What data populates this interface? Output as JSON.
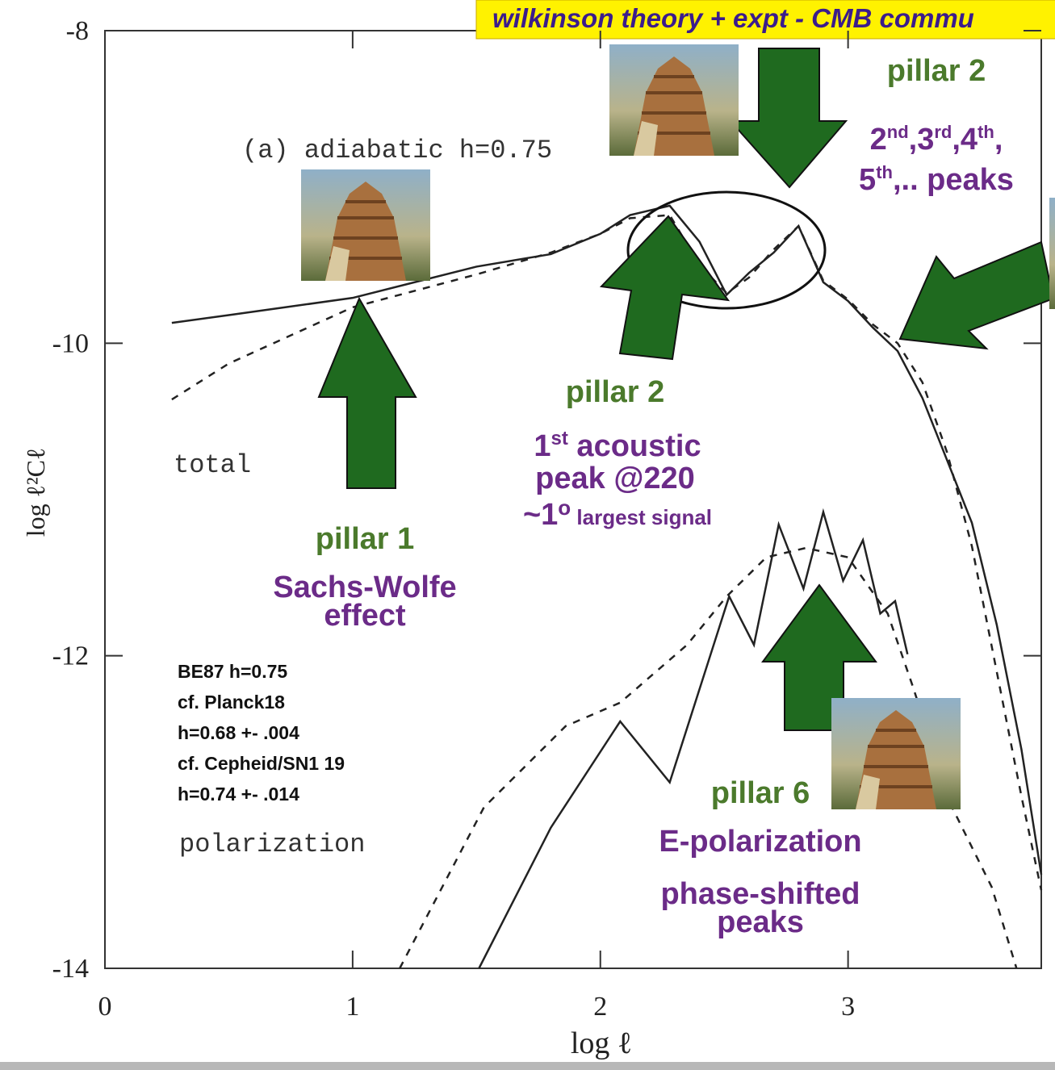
{
  "chart_data": {
    "type": "line",
    "title": "wilkinson theory + expt - CMB commu",
    "xlabel": "log ℓ",
    "ylabel": "log ℓ²Cℓ",
    "panel_label": "(a) adiabatic h=0.75",
    "curve_labels": [
      "total",
      "polarization"
    ],
    "xlim": [
      0,
      3.78
    ],
    "ylim": [
      -14,
      -8
    ],
    "xticks": [
      0,
      1,
      2,
      3
    ],
    "yticks": [
      -8,
      -10,
      -12,
      -14
    ],
    "series": [
      {
        "style": "solid",
        "color": "#222222",
        "x": [
          0.27,
          0.5,
          1.0,
          1.5,
          1.8,
          2.0,
          2.12,
          2.28,
          2.4,
          2.51,
          2.6,
          2.7,
          2.8,
          2.9,
          3.0,
          3.1,
          3.2,
          3.3,
          3.4,
          3.5,
          3.6,
          3.7,
          3.78
        ],
        "values": [
          -9.87,
          -9.82,
          -9.71,
          -9.51,
          -9.43,
          -9.3,
          -9.18,
          -9.12,
          -9.35,
          -9.69,
          -9.55,
          -9.42,
          -9.25,
          -9.61,
          -9.73,
          -9.9,
          -10.05,
          -10.35,
          -10.75,
          -11.15,
          -11.8,
          -12.6,
          -13.4
        ]
      },
      {
        "style": "dashed",
        "color": "#222222",
        "x": [
          0.27,
          0.5,
          1.0,
          1.5,
          1.8,
          2.0,
          2.12,
          2.28,
          2.4,
          2.51,
          2.6,
          2.7,
          2.8,
          2.9,
          3.0,
          3.1,
          3.2,
          3.3,
          3.4,
          3.5,
          3.6,
          3.7,
          3.78
        ],
        "values": [
          -10.36,
          -10.13,
          -9.77,
          -9.56,
          -9.42,
          -9.3,
          -9.2,
          -9.18,
          -9.5,
          -9.68,
          -9.58,
          -9.4,
          -9.25,
          -9.6,
          -9.72,
          -9.88,
          -10.0,
          -10.25,
          -10.7,
          -11.3,
          -12.1,
          -12.9,
          -13.5
        ]
      },
      {
        "style": "solid",
        "color": "#222222",
        "x": [
          1.51,
          1.8,
          2.08,
          2.28,
          2.52,
          2.62,
          2.72,
          2.82,
          2.9,
          2.98,
          3.06,
          3.13,
          3.19,
          3.24
        ],
        "values": [
          -14,
          -13.1,
          -12.42,
          -12.81,
          -11.62,
          -11.93,
          -11.16,
          -11.57,
          -11.08,
          -11.52,
          -11.26,
          -11.73,
          -11.65,
          -11.99
        ]
      },
      {
        "style": "dashed",
        "color": "#222222",
        "x": [
          1.19,
          1.53,
          1.86,
          2.08,
          2.35,
          2.51,
          2.67,
          2.83,
          3.0,
          3.16,
          3.26,
          3.42,
          3.58,
          3.68
        ],
        "values": [
          -14,
          -12.97,
          -12.45,
          -12.3,
          -11.93,
          -11.62,
          -11.37,
          -11.31,
          -11.37,
          -11.73,
          -12.19,
          -12.97,
          -13.48,
          -14
        ]
      }
    ],
    "annotations": {
      "pillar1": {
        "title": "pillar 1",
        "lines": [
          "Sachs-Wolfe",
          "effect"
        ]
      },
      "pillar2_first": {
        "title": "pillar 2",
        "line1": [
          "1",
          "st",
          " acoustic"
        ],
        "line2": "peak  @220",
        "line3": [
          "~1",
          "o",
          " largest signal"
        ]
      },
      "pillar2_higher": {
        "title": "pillar 2",
        "line1": [
          "2",
          "nd",
          ",3",
          "rd",
          ",4",
          "th",
          ","
        ],
        "line2": [
          "5",
          "th",
          ",.. peaks"
        ]
      },
      "pillar6": {
        "title": "pillar 6",
        "lines": [
          "E-polarization",
          "phase-shifted",
          "peaks"
        ]
      },
      "note": [
        "BE87 h=0.75",
        "cf. Planck18",
        "h=0.68 +- .004",
        "cf. Cepheid/SN1 19",
        "h=0.74 +- .014"
      ]
    }
  }
}
